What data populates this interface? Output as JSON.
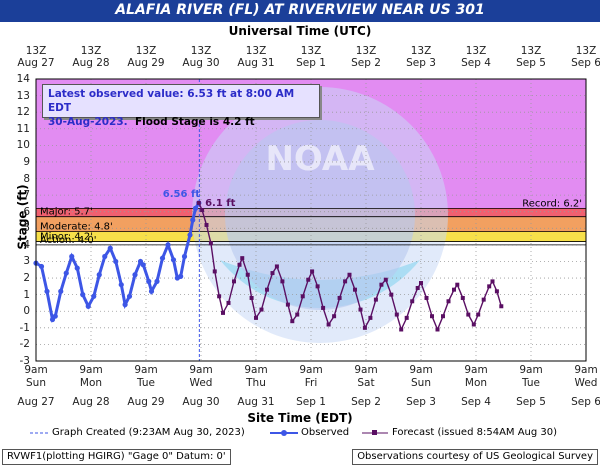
{
  "title": "ALAFIA RIVER (FL) AT RIVERVIEW NEAR US 301",
  "top_axis_title": "Universal Time (UTC)",
  "bottom_axis_title": "Site Time (EDT)",
  "y_axis_title": "Stage (ft)",
  "info": {
    "line1": "Latest observed value: 6.53 ft at 8:00 AM EDT",
    "line2_date": "30-Aug-2023.",
    "line2_flood": "Flood Stage is 4.2 ft"
  },
  "legend": {
    "graph_created": "Graph Created (9:23AM Aug 30, 2023)",
    "observed": "Observed",
    "forecast": "Forecast (issued 8:54AM Aug 30)"
  },
  "footer": {
    "left": "RVWF1(plotting HGIRG) \"Gage 0\" Datum: 0'",
    "right": "Observations courtesy of US Geological Survey"
  },
  "colors": {
    "header": "#1b3f99",
    "observed": "#3d56e6",
    "forecast": "#5a0f63",
    "record_band": "#e28cf2",
    "major_band": "#f06070",
    "moderate_band": "#f2a060",
    "minor_band": "#f7e04a"
  },
  "chart_data": {
    "type": "line",
    "ylim": [
      -3,
      14
    ],
    "y_ticks": [
      "-3",
      "-2",
      "-1",
      "0",
      "1",
      "2",
      "3",
      "4",
      "5",
      "6",
      "7",
      "8",
      "9",
      "10",
      "11",
      "12",
      "13",
      "14"
    ],
    "x_top_labels": [
      [
        "13Z",
        "Aug 27"
      ],
      [
        "13Z",
        "Aug 28"
      ],
      [
        "13Z",
        "Aug 29"
      ],
      [
        "13Z",
        "Aug 30"
      ],
      [
        "13Z",
        "Aug 31"
      ],
      [
        "13Z",
        "Sep 1"
      ],
      [
        "13Z",
        "Sep 2"
      ],
      [
        "13Z",
        "Sep 3"
      ],
      [
        "13Z",
        "Sep 4"
      ],
      [
        "13Z",
        "Sep 5"
      ],
      [
        "13Z",
        "Sep 6"
      ]
    ],
    "x_bottom_labels": [
      [
        "9am",
        "Sun",
        "Aug 27"
      ],
      [
        "9am",
        "Mon",
        "Aug 28"
      ],
      [
        "9am",
        "Tue",
        "Aug 29"
      ],
      [
        "9am",
        "Wed",
        "Aug 30"
      ],
      [
        "9am",
        "Thu",
        "Aug 31"
      ],
      [
        "9am",
        "Fri",
        "Sep 1"
      ],
      [
        "9am",
        "Sat",
        "Sep 2"
      ],
      [
        "9am",
        "Sun",
        "Sep 3"
      ],
      [
        "9am",
        "Mon",
        "Sep 4"
      ],
      [
        "9am",
        "Tue",
        "Sep 5"
      ],
      [
        "9am",
        "Wed",
        "Sep 6"
      ]
    ],
    "thresholds": [
      {
        "name": "Record",
        "label": "Record: 6.2'",
        "value": 6.2
      },
      {
        "name": "Major",
        "label": "Major: 5.7'",
        "value": 5.7
      },
      {
        "name": "Moderate",
        "label": "Moderate: 4.8'",
        "value": 4.8
      },
      {
        "name": "Minor",
        "label": "Minor: 4.2'",
        "value": 4.2
      },
      {
        "name": "Action",
        "label": "Action: 4.0'",
        "value": 4.0
      }
    ],
    "graph_created_day": 2.97,
    "peak_observed_label": "6.56 ft",
    "peak_forecast_label": "6.1 ft",
    "series": [
      {
        "name": "Observed",
        "points": [
          [
            0.0,
            2.9
          ],
          [
            0.1,
            2.7
          ],
          [
            0.2,
            1.2
          ],
          [
            0.3,
            -0.5
          ],
          [
            0.35,
            -0.3
          ],
          [
            0.45,
            1.2
          ],
          [
            0.55,
            2.3
          ],
          [
            0.65,
            3.3
          ],
          [
            0.75,
            2.6
          ],
          [
            0.85,
            1.0
          ],
          [
            0.95,
            0.3
          ],
          [
            1.05,
            0.9
          ],
          [
            1.15,
            2.2
          ],
          [
            1.25,
            3.3
          ],
          [
            1.35,
            3.8
          ],
          [
            1.45,
            3.0
          ],
          [
            1.55,
            1.6
          ],
          [
            1.62,
            0.4
          ],
          [
            1.7,
            0.9
          ],
          [
            1.8,
            2.2
          ],
          [
            1.9,
            3.0
          ],
          [
            1.95,
            2.8
          ],
          [
            2.05,
            1.8
          ],
          [
            2.1,
            1.2
          ],
          [
            2.2,
            1.8
          ],
          [
            2.3,
            3.2
          ],
          [
            2.4,
            4.0
          ],
          [
            2.5,
            3.1
          ],
          [
            2.57,
            2.0
          ],
          [
            2.63,
            2.1
          ],
          [
            2.7,
            3.3
          ],
          [
            2.8,
            4.6
          ],
          [
            2.85,
            5.5
          ],
          [
            2.9,
            6.2
          ],
          [
            2.96,
            6.53
          ]
        ]
      },
      {
        "name": "Forecast",
        "points": [
          [
            2.96,
            6.53
          ],
          [
            3.02,
            6.1
          ],
          [
            3.1,
            5.2
          ],
          [
            3.18,
            4.1
          ],
          [
            3.25,
            2.4
          ],
          [
            3.33,
            0.9
          ],
          [
            3.4,
            -0.1
          ],
          [
            3.5,
            0.5
          ],
          [
            3.6,
            1.8
          ],
          [
            3.7,
            2.8
          ],
          [
            3.75,
            3.2
          ],
          [
            3.85,
            2.2
          ],
          [
            3.92,
            0.8
          ],
          [
            4.0,
            -0.4
          ],
          [
            4.1,
            0.1
          ],
          [
            4.2,
            1.3
          ],
          [
            4.3,
            2.3
          ],
          [
            4.38,
            2.7
          ],
          [
            4.48,
            1.8
          ],
          [
            4.58,
            0.4
          ],
          [
            4.66,
            -0.6
          ],
          [
            4.75,
            -0.2
          ],
          [
            4.85,
            0.9
          ],
          [
            4.95,
            1.9
          ],
          [
            5.02,
            2.4
          ],
          [
            5.12,
            1.5
          ],
          [
            5.22,
            0.2
          ],
          [
            5.32,
            -0.8
          ],
          [
            5.42,
            -0.3
          ],
          [
            5.52,
            0.8
          ],
          [
            5.62,
            1.8
          ],
          [
            5.7,
            2.2
          ],
          [
            5.8,
            1.3
          ],
          [
            5.9,
            0.1
          ],
          [
            5.98,
            -1.0
          ],
          [
            6.08,
            -0.4
          ],
          [
            6.18,
            0.7
          ],
          [
            6.28,
            1.6
          ],
          [
            6.36,
            1.9
          ],
          [
            6.46,
            1.0
          ],
          [
            6.56,
            -0.2
          ],
          [
            6.64,
            -1.1
          ],
          [
            6.74,
            -0.4
          ],
          [
            6.84,
            0.6
          ],
          [
            6.94,
            1.4
          ],
          [
            7.0,
            1.7
          ],
          [
            7.1,
            0.8
          ],
          [
            7.2,
            -0.3
          ],
          [
            7.3,
            -1.1
          ],
          [
            7.4,
            -0.3
          ],
          [
            7.5,
            0.6
          ],
          [
            7.6,
            1.3
          ],
          [
            7.66,
            1.6
          ],
          [
            7.76,
            0.8
          ],
          [
            7.86,
            -0.2
          ],
          [
            7.96,
            -0.8
          ],
          [
            8.04,
            -0.2
          ],
          [
            8.14,
            0.7
          ],
          [
            8.24,
            1.5
          ],
          [
            8.3,
            1.8
          ],
          [
            8.38,
            1.2
          ],
          [
            8.46,
            0.3
          ]
        ]
      }
    ]
  }
}
